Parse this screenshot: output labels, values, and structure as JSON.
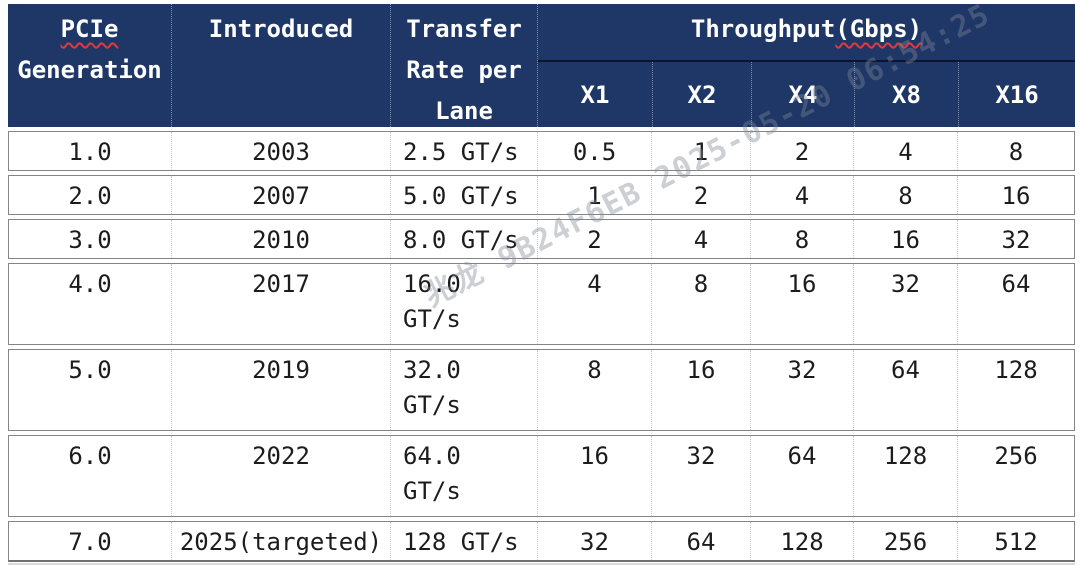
{
  "header": {
    "pcie_line1": "PCIe",
    "pcie_line2": "Generation",
    "introduced": "Introduced",
    "transfer_rate": "Transfer Rate per Lane",
    "throughput_prefix": "Throughput",
    "throughput_wavy": "(Gbps)",
    "x_cols": [
      "X1",
      "X2",
      "X4",
      "X8",
      "X16"
    ]
  },
  "rows": [
    {
      "generation": "1.0",
      "introduced": "2003",
      "transfer_rate": "2.5 GT/s",
      "x1": "0.5",
      "x2": "1",
      "x4": "2",
      "x8": "4",
      "x16": "8"
    },
    {
      "generation": "2.0",
      "introduced": "2007",
      "transfer_rate": "5.0 GT/s",
      "x1": "1",
      "x2": "2",
      "x4": "4",
      "x8": "8",
      "x16": "16"
    },
    {
      "generation": "3.0",
      "introduced": "2010",
      "transfer_rate": "8.0 GT/s",
      "x1": "2",
      "x2": "4",
      "x4": "8",
      "x8": "16",
      "x16": "32"
    },
    {
      "generation": "4.0",
      "introduced": "2017",
      "transfer_rate": "16.0\nGT/s",
      "x1": "4",
      "x2": "8",
      "x4": "16",
      "x8": "32",
      "x16": "64"
    },
    {
      "generation": "5.0",
      "introduced": "2019",
      "transfer_rate": "32.0\nGT/s",
      "x1": "8",
      "x2": "16",
      "x4": "32",
      "x8": "64",
      "x16": "128"
    },
    {
      "generation": "6.0",
      "introduced": "2022",
      "transfer_rate": "64.0\nGT/s",
      "x1": "16",
      "x2": "32",
      "x4": "64",
      "x8": "128",
      "x16": "256"
    },
    {
      "generation": "7.0",
      "introduced": "2025(targeted)",
      "transfer_rate": "128 GT/s",
      "x1": "32",
      "x2": "64",
      "x4": "128",
      "x8": "256",
      "x16": "512"
    }
  ],
  "watermark": {
    "text": "兆龙 9B24F6EB 2025-05-20 06:54:25"
  },
  "colors": {
    "header_bg": "#1e3767",
    "header_text": "#ffffff",
    "header_divider_dark": "#0a1530",
    "row_border": "#858585",
    "column_divider": "#c9c9c9",
    "body_text": "#1c1c1c",
    "spellcheck_red": "#e03a3a"
  }
}
